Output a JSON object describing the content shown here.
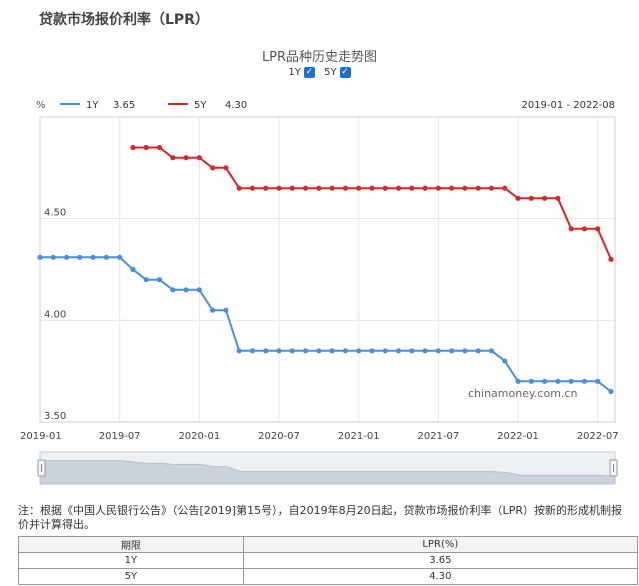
{
  "page": {
    "title": "贷款市场报价利率（LPR）"
  },
  "toggles": [
    {
      "label": "1Y",
      "checked": true
    },
    {
      "label": "5Y",
      "checked": true
    }
  ],
  "colors": {
    "series_1y": "#4a90d9",
    "series_5y": "#d62828",
    "grid": "#e6e6e6",
    "navigator_fill": "#c9d4df"
  },
  "watermark": "chinamoney.com.cn",
  "chart_data": {
    "type": "line",
    "title": "LPR品种历史走势图",
    "ylabel": "%",
    "date_range_label": "2019-01 - 2022-08",
    "xlim": [
      "2019-01",
      "2022-08"
    ],
    "ylim": [
      3.5,
      5.0
    ],
    "yticks": [
      "3.50",
      "4.00",
      "4.50"
    ],
    "xticks": [
      "2019-01",
      "2019-07",
      "2020-01",
      "2020-07",
      "2021-01",
      "2021-07",
      "2022-01",
      "2022-07"
    ],
    "grid": true,
    "legend": "top-left",
    "x": [
      "2019-01",
      "2019-02",
      "2019-03",
      "2019-04",
      "2019-05",
      "2019-06",
      "2019-07",
      "2019-08",
      "2019-09",
      "2019-10",
      "2019-11",
      "2019-12",
      "2020-01",
      "2020-02",
      "2020-03",
      "2020-04",
      "2020-05",
      "2020-06",
      "2020-07",
      "2020-08",
      "2020-09",
      "2020-10",
      "2020-11",
      "2020-12",
      "2021-01",
      "2021-02",
      "2021-03",
      "2021-04",
      "2021-05",
      "2021-06",
      "2021-07",
      "2021-08",
      "2021-09",
      "2021-10",
      "2021-11",
      "2021-12",
      "2022-01",
      "2022-02",
      "2022-03",
      "2022-04",
      "2022-05",
      "2022-06",
      "2022-07",
      "2022-08"
    ],
    "series": [
      {
        "name": "1Y",
        "legend_value": "3.65",
        "values": [
          4.31,
          4.31,
          4.31,
          4.31,
          4.31,
          4.31,
          4.31,
          4.25,
          4.2,
          4.2,
          4.15,
          4.15,
          4.15,
          4.05,
          4.05,
          3.85,
          3.85,
          3.85,
          3.85,
          3.85,
          3.85,
          3.85,
          3.85,
          3.85,
          3.85,
          3.85,
          3.85,
          3.85,
          3.85,
          3.85,
          3.85,
          3.85,
          3.85,
          3.85,
          3.85,
          3.8,
          3.7,
          3.7,
          3.7,
          3.7,
          3.7,
          3.7,
          3.7,
          3.65
        ]
      },
      {
        "name": "5Y",
        "legend_value": "4.30",
        "values": [
          null,
          null,
          null,
          null,
          null,
          null,
          null,
          4.85,
          4.85,
          4.85,
          4.8,
          4.8,
          4.8,
          4.75,
          4.75,
          4.65,
          4.65,
          4.65,
          4.65,
          4.65,
          4.65,
          4.65,
          4.65,
          4.65,
          4.65,
          4.65,
          4.65,
          4.65,
          4.65,
          4.65,
          4.65,
          4.65,
          4.65,
          4.65,
          4.65,
          4.65,
          4.6,
          4.6,
          4.6,
          4.6,
          4.45,
          4.45,
          4.45,
          4.3
        ]
      }
    ]
  },
  "note": "注：根据《中国人民银行公告》（公告[2019]第15号），自2019年8月20日起，贷款市场报价利率（LPR）按新的形成机制报价并计算得出。",
  "table": {
    "headers": [
      "期限",
      "LPR(%)"
    ],
    "rows": [
      [
        "1Y",
        "3.65"
      ],
      [
        "5Y",
        "4.30"
      ]
    ]
  }
}
